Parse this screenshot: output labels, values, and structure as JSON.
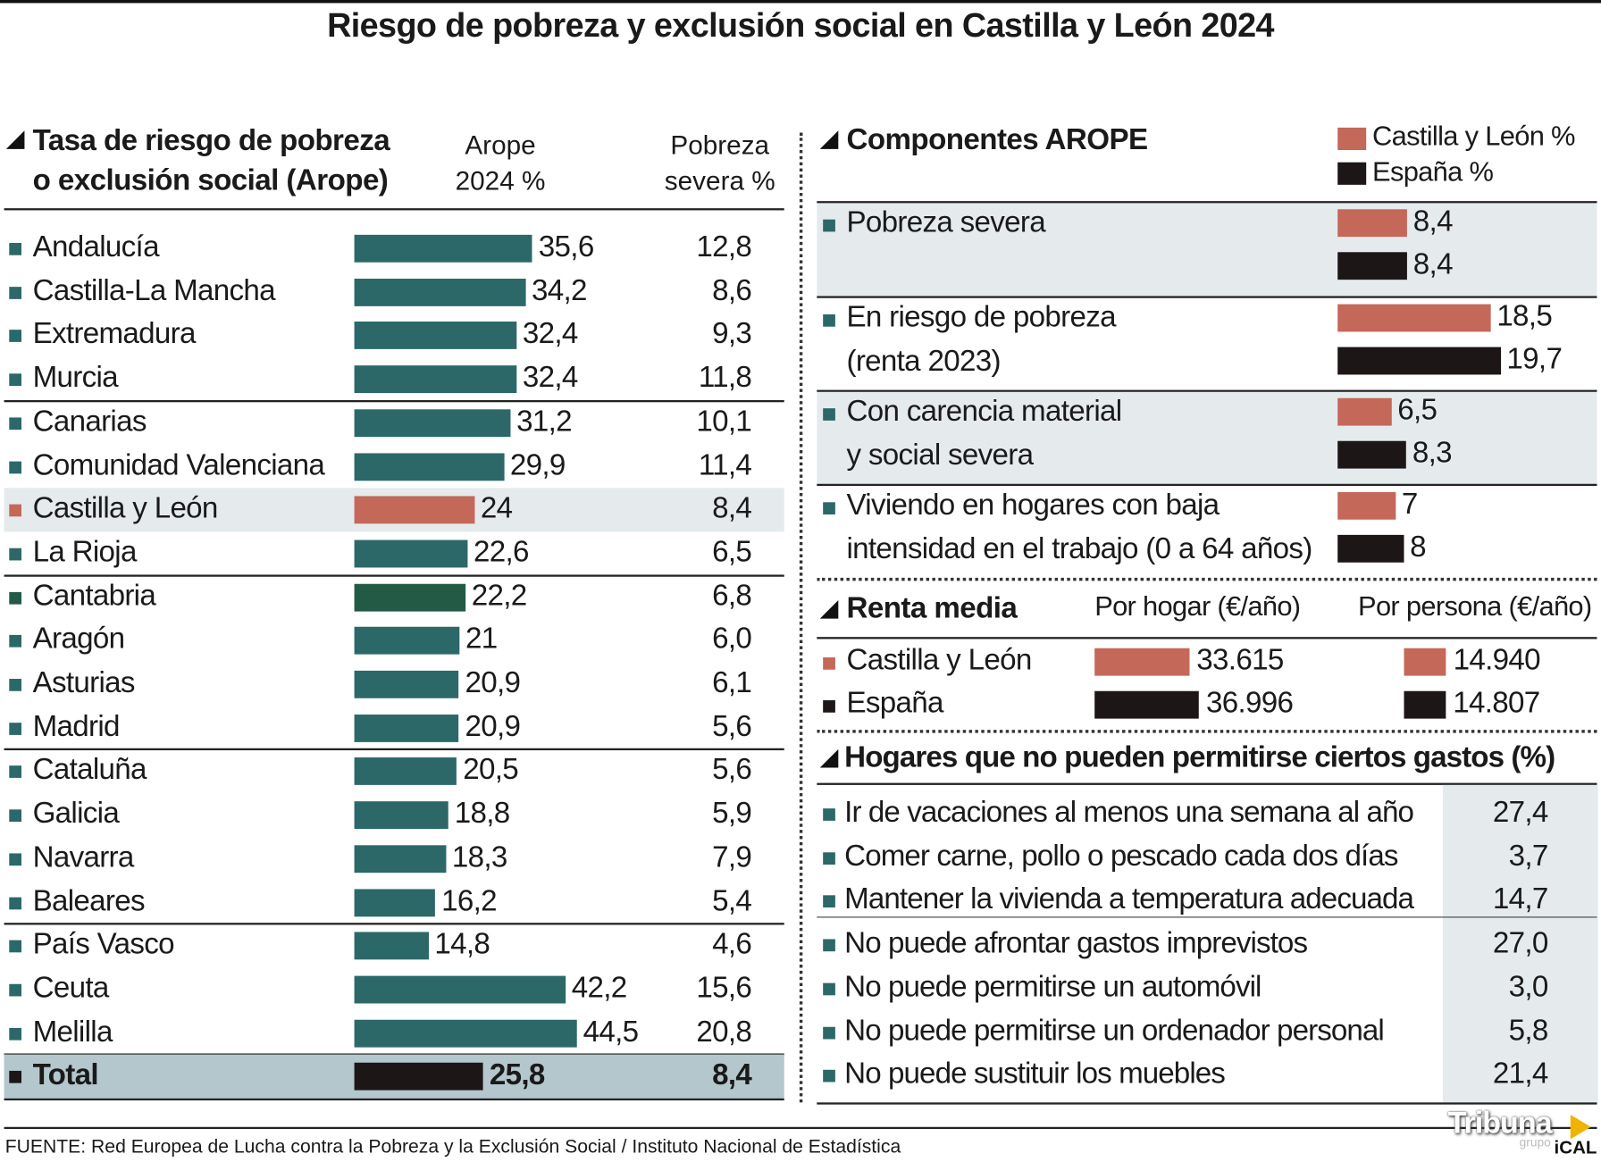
{
  "title": "Riesgo de pobreza y exclusión social en Castilla y León 2024",
  "colors": {
    "teal": "#2c6868",
    "cantabria": "#235a46",
    "cyl": "#c4685a",
    "dark": "#1c1616",
    "shade": "#e5ebed",
    "total_bg": "#b4c7cd"
  },
  "left": {
    "heading_line1": "Tasa de riesgo de pobreza",
    "heading_line2": "o exclusión social (Arope)",
    "col1_line1": "Arope",
    "col1_line2": "2024 %",
    "col2_line1": "Pobreza",
    "col2_line2": "severa %"
  },
  "chart_data": {
    "type": "bar",
    "title": "Tasa de riesgo de pobreza o exclusión social (Arope)",
    "categories": [
      "Andalucía",
      "Castilla-La Mancha",
      "Extremadura",
      "Murcia",
      "Canarias",
      "Comunidad Valenciana",
      "Castilla y León",
      "La Rioja",
      "Cantabria",
      "Aragón",
      "Asturias",
      "Madrid",
      "Cataluña",
      "Galicia",
      "Navarra",
      "Baleares",
      "País Vasco",
      "Ceuta",
      "Melilla",
      "Total"
    ],
    "arope": [
      "35,6",
      "34,2",
      "32,4",
      "32,4",
      "31,2",
      "29,9",
      "24",
      "22,6",
      "22,2",
      "21",
      "20,9",
      "20,9",
      "20,5",
      "18,8",
      "18,3",
      "16,2",
      "14,8",
      "42,2",
      "44,5",
      "25,8"
    ],
    "severa": [
      "12,8",
      "8,6",
      "9,3",
      "11,8",
      "10,1",
      "11,4",
      "8,4",
      "6,5",
      "6,8",
      "6,0",
      "6,1",
      "5,6",
      "5,6",
      "5,9",
      "7,9",
      "5,4",
      "4,6",
      "15,6",
      "20,8",
      "8,4"
    ]
  },
  "arope_components": {
    "heading": "Componentes AROPE",
    "legend": [
      "Castilla y León %",
      "España %"
    ],
    "rows": [
      {
        "l1": "Pobreza severa",
        "l2": "",
        "cyl": "8,4",
        "esp": "8,4"
      },
      {
        "l1": "En riesgo de pobreza",
        "l2": "(renta 2023)",
        "cyl": "18,5",
        "esp": "19,7"
      },
      {
        "l1": "Con carencia material",
        "l2": "y social severa",
        "cyl": "6,5",
        "esp": "8,3"
      },
      {
        "l1": "Viviendo en hogares con baja",
        "l2": "intensidad en el trabajo (0 a 64 años)",
        "cyl": "7",
        "esp": "8"
      }
    ]
  },
  "renta": {
    "heading": "Renta media",
    "col1": "Por hogar (€/año)",
    "col2": "Por persona (€/año)",
    "rows": [
      {
        "label": "Castilla y León",
        "hogar": "33.615",
        "persona": "14.940"
      },
      {
        "label": "España",
        "hogar": "36.996",
        "persona": "14.807"
      }
    ]
  },
  "hogares": {
    "heading": "Hogares que no pueden permitirse ciertos gastos (%)",
    "rows": [
      {
        "label": "Ir de vacaciones al menos una semana al año",
        "value": "27,4"
      },
      {
        "label": "Comer carne, pollo o pescado cada dos días",
        "value": "3,7"
      },
      {
        "label": "Mantener la vivienda a temperatura adecuada",
        "value": "14,7"
      },
      {
        "label": "No puede afrontar gastos imprevistos",
        "value": "27,0"
      },
      {
        "label": "No puede permitirse un automóvil",
        "value": "3,0"
      },
      {
        "label": "No puede permitirse un ordenador personal",
        "value": "5,8"
      },
      {
        "label": "No puede sustituir los muebles",
        "value": "21,4"
      }
    ]
  },
  "source": "FUENTE: Red Europea de Lucha contra la Pobreza y la Exclusión Social / Instituto Nacional de Estadística",
  "logo": {
    "main": "Tribuna",
    "sub": "grupo",
    "brand": "iCAL"
  }
}
